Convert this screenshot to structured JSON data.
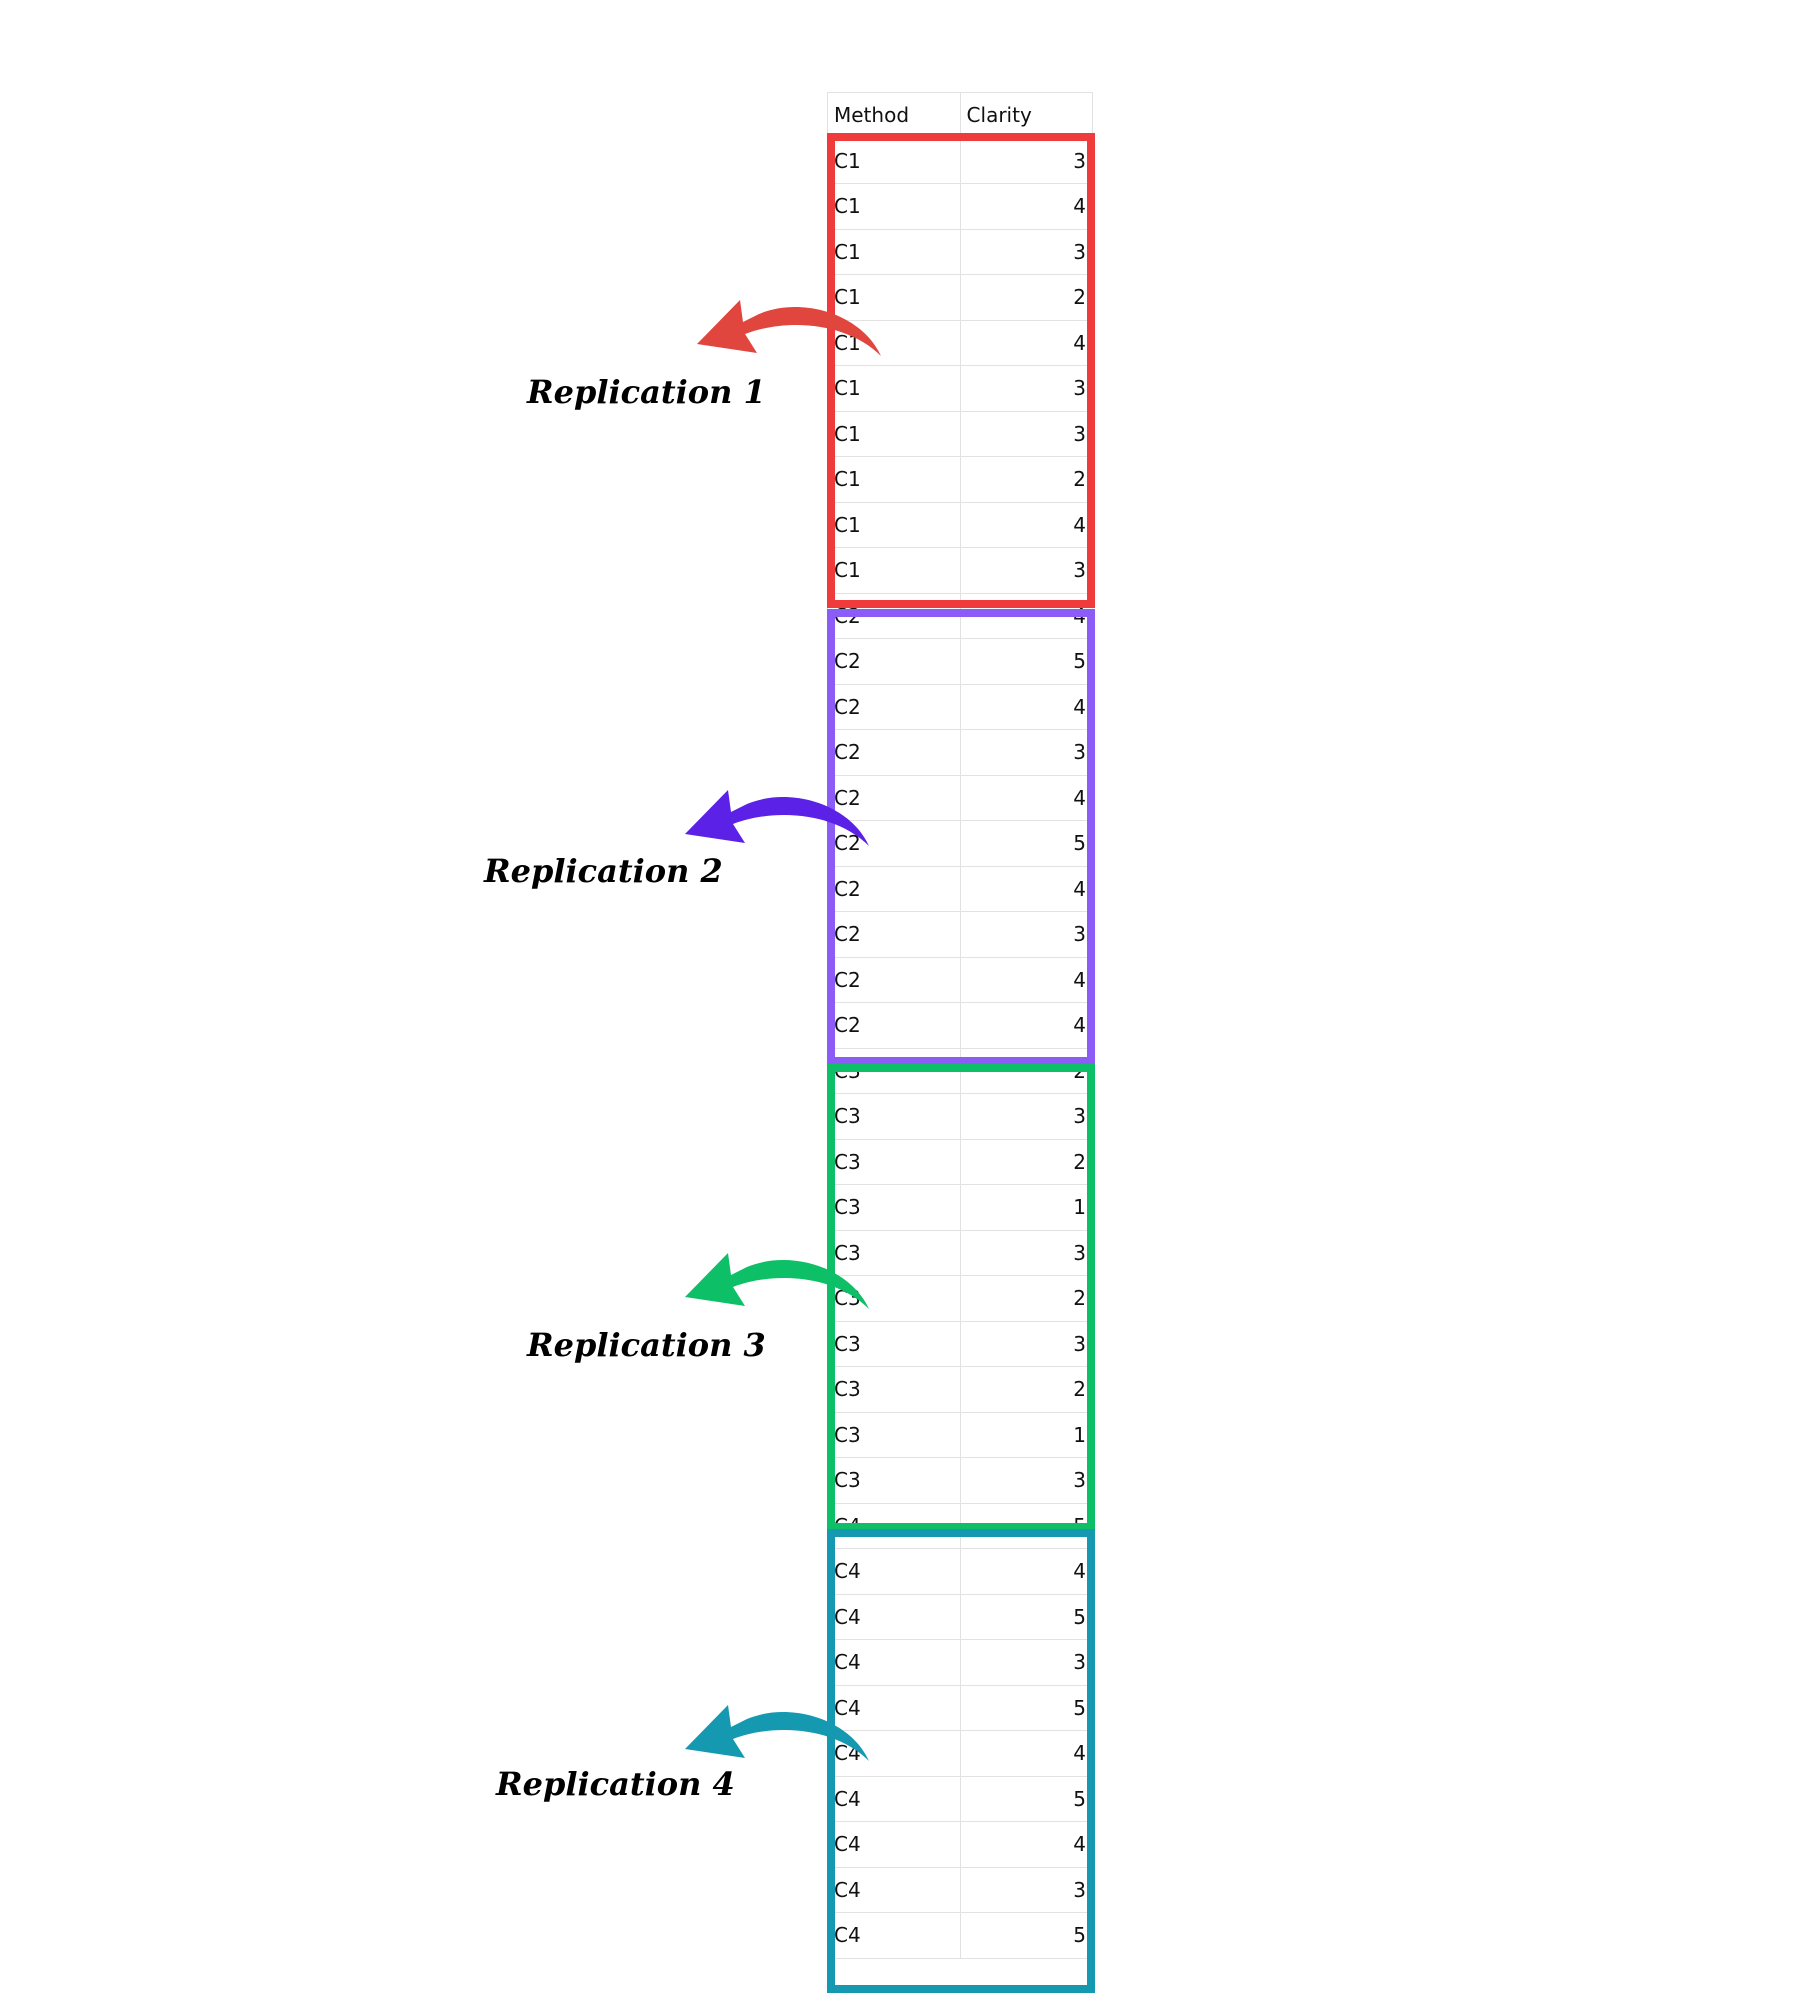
{
  "table": {
    "headers": [
      "Method",
      "Clarity"
    ],
    "rows": [
      [
        "C1",
        "3"
      ],
      [
        "C1",
        "4"
      ],
      [
        "C1",
        "3"
      ],
      [
        "C1",
        "2"
      ],
      [
        "C1",
        "4"
      ],
      [
        "C1",
        "3"
      ],
      [
        "C1",
        "3"
      ],
      [
        "C1",
        "2"
      ],
      [
        "C1",
        "4"
      ],
      [
        "C1",
        "3"
      ],
      [
        "C2",
        "4"
      ],
      [
        "C2",
        "5"
      ],
      [
        "C2",
        "4"
      ],
      [
        "C2",
        "3"
      ],
      [
        "C2",
        "4"
      ],
      [
        "C2",
        "5"
      ],
      [
        "C2",
        "4"
      ],
      [
        "C2",
        "3"
      ],
      [
        "C2",
        "4"
      ],
      [
        "C2",
        "4"
      ],
      [
        "C3",
        "2"
      ],
      [
        "C3",
        "3"
      ],
      [
        "C3",
        "2"
      ],
      [
        "C3",
        "1"
      ],
      [
        "C3",
        "3"
      ],
      [
        "C3",
        "2"
      ],
      [
        "C3",
        "3"
      ],
      [
        "C3",
        "2"
      ],
      [
        "C3",
        "1"
      ],
      [
        "C3",
        "3"
      ],
      [
        "C4",
        "5"
      ],
      [
        "C4",
        "4"
      ],
      [
        "C4",
        "5"
      ],
      [
        "C4",
        "3"
      ],
      [
        "C4",
        "5"
      ],
      [
        "C4",
        "4"
      ],
      [
        "C4",
        "5"
      ],
      [
        "C4",
        "4"
      ],
      [
        "C4",
        "3"
      ],
      [
        "C4",
        "5"
      ]
    ]
  },
  "replications": [
    {
      "label": "Replication 1",
      "color": "#ef3b3b",
      "arrow_color": "#e0463e",
      "method": "C1"
    },
    {
      "label": "Replication 2",
      "color": "#8b5cf6",
      "arrow_color": "#5b21e6",
      "method": "C2"
    },
    {
      "label": "Replication 3",
      "color": "#0dbf66",
      "arrow_color": "#0dbf66",
      "method": "C3"
    },
    {
      "label": "Replication 4",
      "color": "#1599b0",
      "arrow_color": "#1599b0",
      "method": "C4"
    }
  ]
}
